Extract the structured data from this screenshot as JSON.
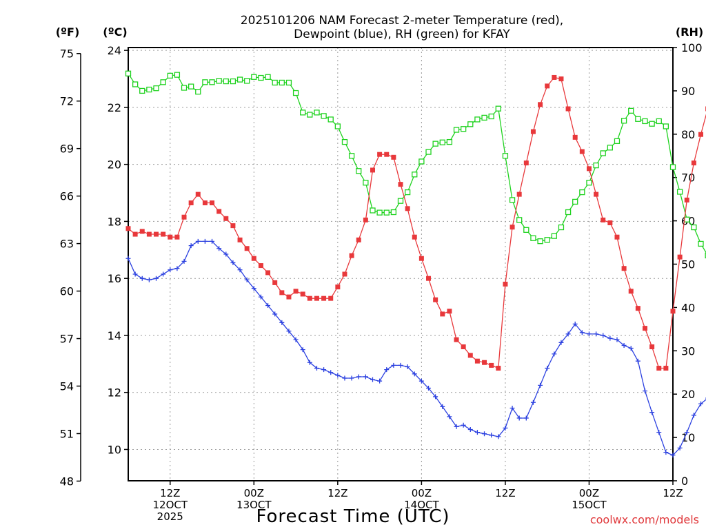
{
  "chart_data": {
    "type": "line",
    "title_line1": "2025101206 NAM Forecast 2-meter Temperature (red),",
    "title_line2": "Dewpoint (blue), RH (green) for KFAY",
    "xlabel": "Forecast Time (UTC)",
    "credit": "coolwx.com/models",
    "unit_f": "(ºF)",
    "unit_c": "(ºC)",
    "unit_rh": "(RH)",
    "x_range_hours": [
      6,
      84
    ],
    "x_ticks": [
      {
        "hour": 12,
        "lines": [
          "12Z",
          "12OCT",
          "2025"
        ]
      },
      {
        "hour": 24,
        "lines": [
          "00Z",
          "13OCT"
        ]
      },
      {
        "hour": 36,
        "lines": [
          "12Z"
        ]
      },
      {
        "hour": 48,
        "lines": [
          "00Z",
          "14OCT"
        ]
      },
      {
        "hour": 60,
        "lines": [
          "12Z"
        ]
      },
      {
        "hour": 72,
        "lines": [
          "00Z",
          "15OCT"
        ]
      },
      {
        "hour": 84,
        "lines": [
          "12Z"
        ]
      }
    ],
    "y_left_c": {
      "range": [
        8.9,
        24.1
      ],
      "ticks": [
        "10",
        "12",
        "14",
        "16",
        "18",
        "20",
        "22",
        "24"
      ]
    },
    "y_left_f": {
      "ticks": [
        "48",
        "51",
        "54",
        "57",
        "60",
        "63",
        "66",
        "69",
        "72",
        "75"
      ]
    },
    "y_right_rh": {
      "range": [
        0,
        100
      ],
      "ticks": [
        "0",
        "10",
        "20",
        "30",
        "40",
        "50",
        "60",
        "70",
        "80",
        "90",
        "100"
      ]
    },
    "grid": true,
    "colors": {
      "temperature": "#e8383b",
      "dewpoint": "#2b40e0",
      "rh": "#1ed21e",
      "grid": "#9a9a9a"
    },
    "series": [
      {
        "key": "temperature",
        "units": "C",
        "x": [
          6,
          7,
          8,
          9,
          10,
          11,
          12,
          13,
          14,
          15,
          16,
          17,
          18,
          19,
          20,
          21,
          22,
          23,
          24,
          25,
          26,
          27,
          28,
          29,
          30,
          31,
          32,
          33,
          34,
          35,
          36,
          37,
          38,
          39,
          40,
          41,
          42,
          43,
          44,
          45,
          46,
          47,
          48,
          49,
          50,
          51,
          52,
          53,
          54,
          55,
          56,
          57,
          58,
          59,
          60,
          61,
          62,
          63,
          64,
          65,
          66,
          67,
          68,
          69,
          70,
          71,
          72,
          73,
          74,
          75,
          76,
          77,
          78,
          79,
          80,
          81,
          82,
          83,
          84,
          85,
          86,
          87,
          88,
          89,
          90
        ],
        "values": [
          17.75,
          17.55,
          17.65,
          17.55,
          17.55,
          17.55,
          17.45,
          17.45,
          18.15,
          18.65,
          18.95,
          18.65,
          18.65,
          18.35,
          18.1,
          17.85,
          17.35,
          17.05,
          16.7,
          16.45,
          16.2,
          15.85,
          15.5,
          15.35,
          15.55,
          15.45,
          15.3,
          15.3,
          15.3,
          15.3,
          15.7,
          16.15,
          16.8,
          17.35,
          18.05,
          19.8,
          20.35,
          20.35,
          20.25,
          19.3,
          18.45,
          17.45,
          16.7,
          16.0,
          15.25,
          14.75,
          14.85,
          13.85,
          13.6,
          13.3,
          13.1,
          13.05,
          12.95,
          12.85,
          15.8,
          17.8,
          18.95,
          20.05,
          21.15,
          22.1,
          22.75,
          23.05,
          23.0,
          21.95,
          20.95,
          20.45,
          19.85,
          18.95,
          18.05,
          17.95,
          17.45,
          16.35,
          15.55,
          14.95,
          14.25,
          13.6,
          12.85,
          12.85,
          14.85,
          16.75,
          18.75,
          20.05,
          21.05,
          21.95,
          22.5
        ]
      },
      {
        "key": "dewpoint",
        "units": "C",
        "x": [
          6,
          7,
          8,
          9,
          10,
          11,
          12,
          13,
          14,
          15,
          16,
          17,
          18,
          19,
          20,
          21,
          22,
          23,
          24,
          25,
          26,
          27,
          28,
          29,
          30,
          31,
          32,
          33,
          34,
          35,
          36,
          37,
          38,
          39,
          40,
          41,
          42,
          43,
          44,
          45,
          46,
          47,
          48,
          49,
          50,
          51,
          52,
          53,
          54,
          55,
          56,
          57,
          58,
          59,
          60,
          61,
          62,
          63,
          64,
          65,
          66,
          67,
          68,
          69,
          70,
          71,
          72,
          73,
          74,
          75,
          76,
          77,
          78,
          79,
          80,
          81,
          82,
          83,
          84,
          85,
          86,
          87,
          88,
          89,
          90
        ],
        "values": [
          16.7,
          16.15,
          16.0,
          15.95,
          16.0,
          16.15,
          16.3,
          16.35,
          16.6,
          17.15,
          17.3,
          17.3,
          17.3,
          17.05,
          16.85,
          16.55,
          16.3,
          15.95,
          15.65,
          15.35,
          15.05,
          14.75,
          14.45,
          14.15,
          13.85,
          13.5,
          13.05,
          12.85,
          12.8,
          12.7,
          12.6,
          12.5,
          12.5,
          12.55,
          12.55,
          12.45,
          12.4,
          12.8,
          12.95,
          12.95,
          12.9,
          12.65,
          12.4,
          12.15,
          11.85,
          11.5,
          11.15,
          10.8,
          10.85,
          10.7,
          10.6,
          10.55,
          10.5,
          10.45,
          10.75,
          11.45,
          11.1,
          11.1,
          11.65,
          12.25,
          12.85,
          13.35,
          13.75,
          14.05,
          14.4,
          14.1,
          14.05,
          14.05,
          14.0,
          13.9,
          13.85,
          13.65,
          13.55,
          13.1,
          12.05,
          11.3,
          10.6,
          9.9,
          9.8,
          10.05,
          10.6,
          11.2,
          11.6,
          11.8,
          11.95
        ]
      },
      {
        "key": "rh",
        "units": "%",
        "x": [
          6,
          7,
          8,
          9,
          10,
          11,
          12,
          13,
          14,
          15,
          16,
          17,
          18,
          19,
          20,
          21,
          22,
          23,
          24,
          25,
          26,
          27,
          28,
          29,
          30,
          31,
          32,
          33,
          34,
          35,
          36,
          37,
          38,
          39,
          40,
          41,
          42,
          43,
          44,
          45,
          46,
          47,
          48,
          49,
          50,
          51,
          52,
          53,
          54,
          55,
          56,
          57,
          58,
          59,
          60,
          61,
          62,
          63,
          64,
          65,
          66,
          67,
          68,
          69,
          70,
          71,
          72,
          73,
          74,
          75,
          76,
          77,
          78,
          79,
          80,
          81,
          82,
          83,
          84,
          85,
          86,
          87,
          88,
          89,
          90
        ],
        "values": [
          94,
          91.5,
          90,
          90.3,
          90.6,
          92,
          93.5,
          93.7,
          90.7,
          91,
          89.8,
          92,
          92,
          92.3,
          92.2,
          92.2,
          92.6,
          92.3,
          93.2,
          93,
          93.2,
          91.9,
          91.9,
          91.9,
          89.5,
          85,
          84.5,
          85,
          84.2,
          83.4,
          81.8,
          78.2,
          75,
          71.5,
          68.8,
          62.4,
          61.9,
          61.9,
          62,
          64.6,
          66.6,
          70.7,
          73.7,
          75.9,
          77.8,
          78.1,
          78.2,
          81,
          81.2,
          82.3,
          83.4,
          83.8,
          84.1,
          85.9,
          75,
          64.8,
          60.2,
          57.9,
          56,
          55.3,
          55.6,
          56.5,
          58.5,
          62,
          64.4,
          66.6,
          68.8,
          72.8,
          75.6,
          76.9,
          78.4,
          83.1,
          85.4,
          83.5,
          83,
          82.4,
          83,
          81.8,
          72.4,
          66.7,
          60.3,
          58.5,
          54.7,
          52,
          51.3
        ]
      }
    ]
  }
}
